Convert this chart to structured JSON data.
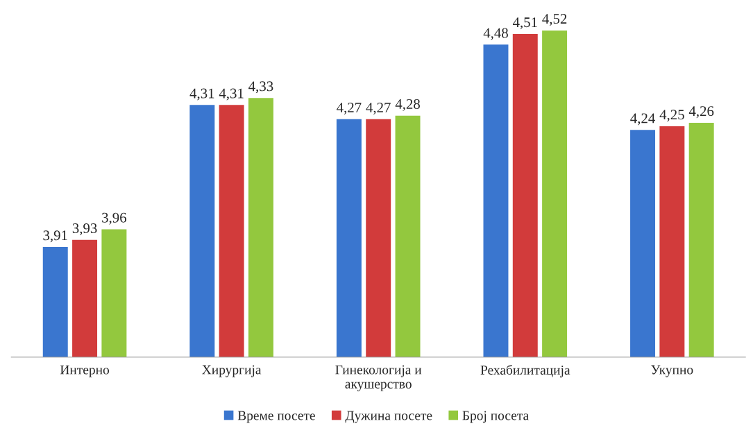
{
  "chart_data": {
    "type": "bar",
    "categories": [
      "Интерно",
      "Хирургија",
      "Гинекологија и\nакушерство",
      "Рехабилитација",
      "Укупно"
    ],
    "series": [
      {
        "name": "Време посете",
        "color": "#3a76cf",
        "values": [
          3.91,
          4.31,
          4.27,
          4.48,
          4.24
        ],
        "value_labels": [
          "3,91",
          "4,31",
          "4,27",
          "4,48",
          "4,24"
        ]
      },
      {
        "name": "Дужина посете",
        "color": "#d23b3b",
        "values": [
          3.93,
          4.31,
          4.27,
          4.51,
          4.25
        ],
        "value_labels": [
          "3,93",
          "4,31",
          "4,27",
          "4,51",
          "4,25"
        ]
      },
      {
        "name": "Број посета",
        "color": "#93c83e",
        "values": [
          3.96,
          4.33,
          4.28,
          4.52,
          4.26
        ],
        "value_labels": [
          "3,96",
          "4,33",
          "4,28",
          "4,52",
          "4,26"
        ]
      }
    ],
    "ylim": [
      3.6,
      4.52
    ],
    "tick_labels": "x",
    "grid": false,
    "legend": "bottom"
  }
}
